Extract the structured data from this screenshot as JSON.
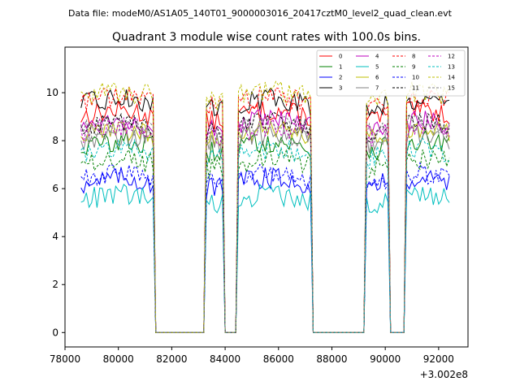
{
  "figure": {
    "suptitle": "Data file: modeM0/AS1A05_140T01_9000003016_20417cztM0_level2_quad_clean.evt"
  },
  "chart_data": {
    "type": "line",
    "title": "Quadrant 3 module wise count rates with 100.0s bins.",
    "xlabel": "",
    "ylabel": "",
    "x_offset_label": "+3.002e8",
    "xlim": [
      78000,
      93100
    ],
    "ylim": [
      -0.6,
      11.9
    ],
    "x_ticks": [
      78000,
      80000,
      82000,
      84000,
      86000,
      88000,
      90000,
      92000
    ],
    "x_tick_labels": [
      "78000",
      "80000",
      "82000",
      "84000",
      "86000",
      "88000",
      "90000",
      "92000"
    ],
    "y_ticks": [
      0,
      2,
      4,
      6,
      8,
      10
    ],
    "y_tick_labels": [
      "0",
      "2",
      "4",
      "6",
      "8",
      "10"
    ],
    "legend_position": "top-right",
    "data_start": 78600,
    "bin_width": 100,
    "gaps": [
      [
        81400,
        83200
      ],
      [
        84000,
        84400
      ],
      [
        87300,
        89200
      ],
      [
        90200,
        90700
      ]
    ],
    "series": [
      {
        "name": "0",
        "color": "#ff0000",
        "dash": "solid",
        "level": 9.0
      },
      {
        "name": "1",
        "color": "#008000",
        "dash": "solid",
        "level": 7.7
      },
      {
        "name": "2",
        "color": "#0000ff",
        "dash": "solid",
        "level": 6.2
      },
      {
        "name": "3",
        "color": "#000000",
        "dash": "solid",
        "level": 9.5
      },
      {
        "name": "4",
        "color": "#bf00bf",
        "dash": "solid",
        "level": 8.6
      },
      {
        "name": "5",
        "color": "#00bfbf",
        "dash": "solid",
        "level": 5.5
      },
      {
        "name": "6",
        "color": "#bfbf00",
        "dash": "solid",
        "level": 8.2
      },
      {
        "name": "7",
        "color": "#808080",
        "dash": "solid",
        "level": 8.0
      },
      {
        "name": "8",
        "color": "#ff0000",
        "dash": "dashed",
        "level": 9.6
      },
      {
        "name": "9",
        "color": "#008000",
        "dash": "dashed",
        "level": 7.0
      },
      {
        "name": "10",
        "color": "#0000ff",
        "dash": "dashed",
        "level": 6.4
      },
      {
        "name": "11",
        "color": "#000000",
        "dash": "dashed",
        "level": 8.5
      },
      {
        "name": "12",
        "color": "#bf00bf",
        "dash": "dashed",
        "level": 8.3
      },
      {
        "name": "13",
        "color": "#00bfbf",
        "dash": "dashed",
        "level": 7.4
      },
      {
        "name": "14",
        "color": "#bfbf00",
        "dash": "dashed",
        "level": 9.8
      },
      {
        "name": "15",
        "color": "#808080",
        "dash": "dashed",
        "level": 8.4
      }
    ]
  }
}
